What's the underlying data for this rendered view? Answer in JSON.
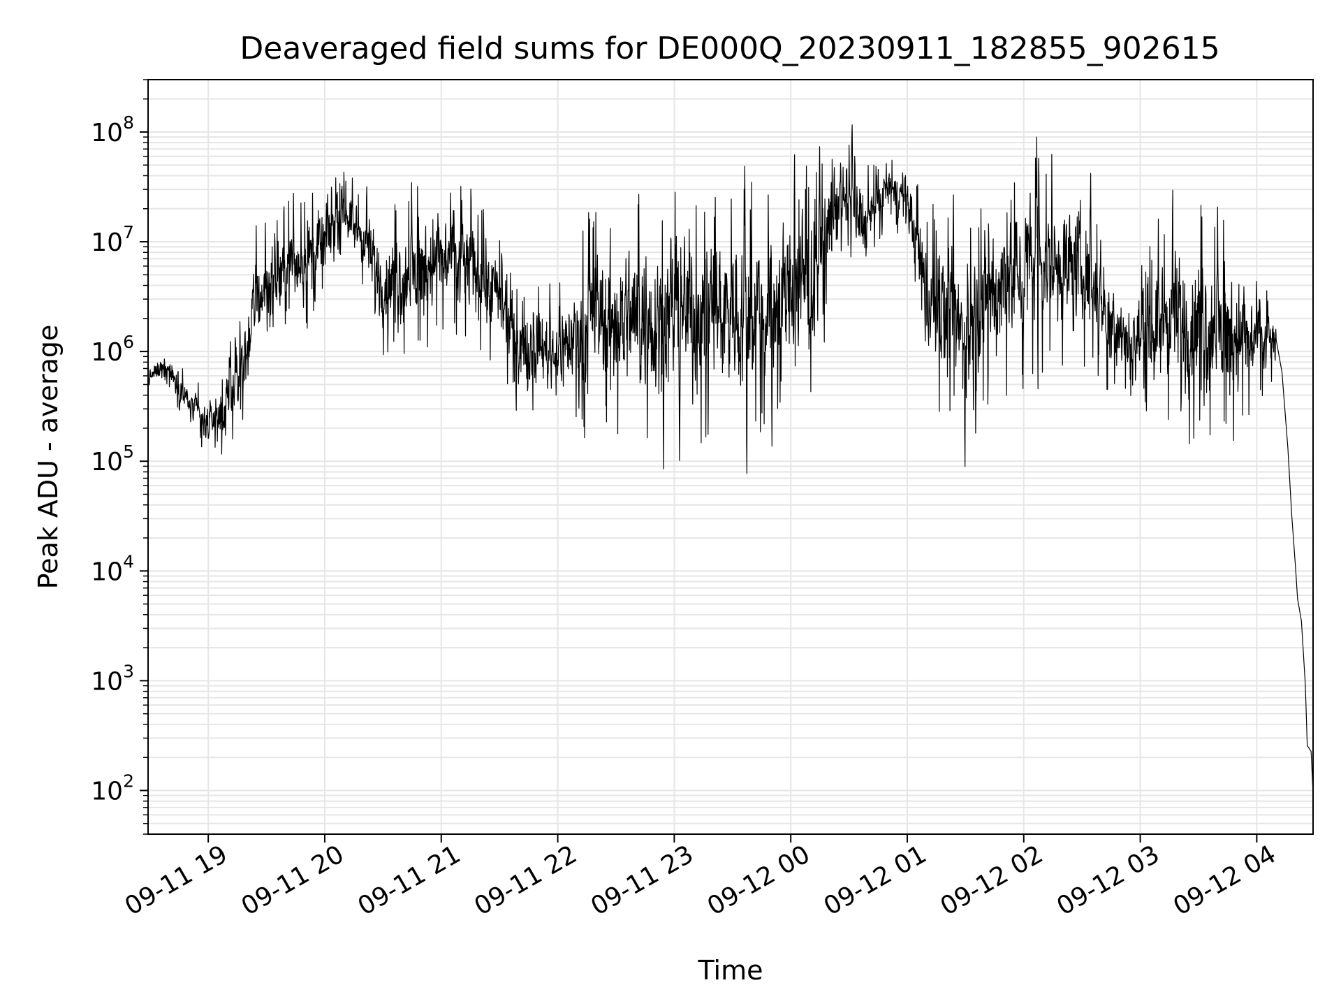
{
  "chart_data": {
    "type": "line",
    "title": "Deaveraged field sums for DE000Q_20230911_182855_902615",
    "xlabel": "Time",
    "ylabel": "Peak ADU - average",
    "yscale": "log",
    "xlim": [
      "2023-09-11 18:29",
      "2023-09-12 04:29"
    ],
    "ylim": [
      40,
      300000000
    ],
    "grid": true,
    "grid_color": "#e6e6e6",
    "line_color": "#000000",
    "x_ticks": [
      {
        "label": "09-11 19",
        "t": "2023-09-11 19:00"
      },
      {
        "label": "09-11 20",
        "t": "2023-09-11 20:00"
      },
      {
        "label": "09-11 21",
        "t": "2023-09-11 21:00"
      },
      {
        "label": "09-11 22",
        "t": "2023-09-11 22:00"
      },
      {
        "label": "09-11 23",
        "t": "2023-09-11 23:00"
      },
      {
        "label": "09-12 00",
        "t": "2023-09-12 00:00"
      },
      {
        "label": "09-12 01",
        "t": "2023-09-12 01:00"
      },
      {
        "label": "09-12 02",
        "t": "2023-09-12 02:00"
      },
      {
        "label": "09-12 03",
        "t": "2023-09-12 03:00"
      },
      {
        "label": "09-12 04",
        "t": "2023-09-12 04:00"
      }
    ],
    "y_ticks": [
      {
        "base": "10",
        "exp": "2",
        "value": 100
      },
      {
        "base": "10",
        "exp": "3",
        "value": 1000
      },
      {
        "base": "10",
        "exp": "4",
        "value": 10000
      },
      {
        "base": "10",
        "exp": "5",
        "value": 100000
      },
      {
        "base": "10",
        "exp": "6",
        "value": 1000000
      },
      {
        "base": "10",
        "exp": "7",
        "value": 10000000
      },
      {
        "base": "10",
        "exp": "8",
        "value": 100000000
      }
    ],
    "series": [
      {
        "style": "noisy",
        "profile": [
          {
            "t": "2023-09-11 18:29",
            "lo": 400000,
            "hi": 800000
          },
          {
            "t": "2023-09-11 18:38",
            "lo": 500000,
            "hi": 1200000
          },
          {
            "t": "2023-09-11 18:48",
            "lo": 200000,
            "hi": 700000
          },
          {
            "t": "2023-09-11 18:58",
            "lo": 100000,
            "hi": 500000
          },
          {
            "t": "2023-09-11 19:08",
            "lo": 80000,
            "hi": 800000
          },
          {
            "t": "2023-09-11 19:18",
            "lo": 200000,
            "hi": 3000000
          },
          {
            "t": "2023-09-11 19:25",
            "lo": 500000,
            "hi": 20000000
          },
          {
            "t": "2023-09-11 19:40",
            "lo": 1000000,
            "hi": 30000000
          },
          {
            "t": "2023-09-11 19:55",
            "lo": 1500000,
            "hi": 40000000
          },
          {
            "t": "2023-09-11 20:10",
            "lo": 8000000,
            "hi": 50000000
          },
          {
            "t": "2023-09-11 20:20",
            "lo": 3000000,
            "hi": 30000000
          },
          {
            "t": "2023-09-11 20:30",
            "lo": 800000,
            "hi": 20000000
          },
          {
            "t": "2023-09-11 20:45",
            "lo": 600000,
            "hi": 40000000
          },
          {
            "t": "2023-09-11 21:00",
            "lo": 1000000,
            "hi": 60000000
          },
          {
            "t": "2023-09-11 21:20",
            "lo": 800000,
            "hi": 40000000
          },
          {
            "t": "2023-09-11 21:40",
            "lo": 300000,
            "hi": 5000000
          },
          {
            "t": "2023-09-11 22:00",
            "lo": 200000,
            "hi": 5000000
          },
          {
            "t": "2023-09-11 22:20",
            "lo": 150000,
            "hi": 30000000
          },
          {
            "t": "2023-09-11 22:40",
            "lo": 100000,
            "hi": 40000000
          },
          {
            "t": "2023-09-11 23:00",
            "lo": 100000,
            "hi": 50000000
          },
          {
            "t": "2023-09-11 23:20",
            "lo": 120000,
            "hi": 50000000
          },
          {
            "t": "2023-09-11 23:40",
            "lo": 100000,
            "hi": 50000000
          },
          {
            "t": "2023-09-12 00:10",
            "lo": 300000,
            "hi": 60000000
          },
          {
            "t": "2023-09-12 00:25",
            "lo": 5000000,
            "hi": 130000000
          },
          {
            "t": "2023-09-12 00:40",
            "lo": 3000000,
            "hi": 60000000
          },
          {
            "t": "2023-09-12 00:50",
            "lo": 15000000,
            "hi": 70000000
          },
          {
            "t": "2023-09-12 01:00",
            "lo": 10000000,
            "hi": 60000000
          },
          {
            "t": "2023-09-12 01:10",
            "lo": 300000,
            "hi": 30000000
          },
          {
            "t": "2023-09-12 01:30",
            "lo": 100000,
            "hi": 20000000
          },
          {
            "t": "2023-09-12 01:50",
            "lo": 300000,
            "hi": 80000000
          },
          {
            "t": "2023-09-12 02:10",
            "lo": 500000,
            "hi": 100000000
          },
          {
            "t": "2023-09-12 02:30",
            "lo": 500000,
            "hi": 60000000
          },
          {
            "t": "2023-09-12 02:55",
            "lo": 300000,
            "hi": 5000000
          },
          {
            "t": "2023-09-12 03:10",
            "lo": 150000,
            "hi": 20000000
          },
          {
            "t": "2023-09-12 03:30",
            "lo": 100000,
            "hi": 30000000
          },
          {
            "t": "2023-09-12 03:50",
            "lo": 100000,
            "hi": 20000000
          },
          {
            "t": "2023-09-12 04:10",
            "lo": 500000,
            "hi": 3000000
          }
        ],
        "tail": [
          {
            "t": "2023-09-12 04:13",
            "v": 600000
          },
          {
            "t": "2023-09-12 04:16",
            "v": 150000
          },
          {
            "t": "2023-09-12 04:18",
            "v": 30000
          },
          {
            "t": "2023-09-12 04:20",
            "v": 10000
          },
          {
            "t": "2023-09-12 04:21",
            "v": 5000
          },
          {
            "t": "2023-09-12 04:23",
            "v": 3000
          },
          {
            "t": "2023-09-12 04:25",
            "v": 1000
          },
          {
            "t": "2023-09-12 04:26",
            "v": 300
          },
          {
            "t": "2023-09-12 04:28",
            "v": 200
          },
          {
            "t": "2023-09-12 04:29",
            "v": 80
          }
        ]
      }
    ]
  }
}
